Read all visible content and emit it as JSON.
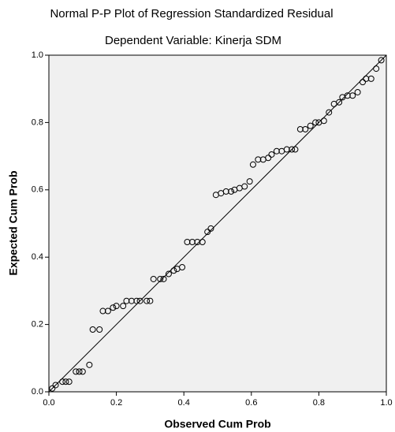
{
  "chart_data": {
    "type": "scatter",
    "title": "Normal P-P Plot of Regression Standardized Residual",
    "subtitle": "Dependent Variable: Kinerja SDM",
    "x_label": "Observed Cum Prob",
    "y_label": "Expected Cum Prob",
    "x": [
      0.01,
      0.02,
      0.04,
      0.05,
      0.06,
      0.08,
      0.09,
      0.1,
      0.12,
      0.13,
      0.15,
      0.16,
      0.175,
      0.19,
      0.2,
      0.22,
      0.23,
      0.245,
      0.26,
      0.27,
      0.29,
      0.3,
      0.31,
      0.33,
      0.34,
      0.355,
      0.37,
      0.38,
      0.395,
      0.41,
      0.425,
      0.44,
      0.455,
      0.47,
      0.48,
      0.495,
      0.51,
      0.525,
      0.54,
      0.55,
      0.565,
      0.58,
      0.595,
      0.605,
      0.62,
      0.635,
      0.65,
      0.66,
      0.675,
      0.69,
      0.705,
      0.72,
      0.73,
      0.745,
      0.76,
      0.775,
      0.79,
      0.8,
      0.815,
      0.83,
      0.845,
      0.86,
      0.87,
      0.885,
      0.9,
      0.915,
      0.93,
      0.94,
      0.955,
      0.97,
      0.985
    ],
    "values": [
      0.01,
      0.02,
      0.03,
      0.03,
      0.03,
      0.06,
      0.06,
      0.06,
      0.08,
      0.185,
      0.185,
      0.24,
      0.24,
      0.25,
      0.255,
      0.255,
      0.27,
      0.27,
      0.27,
      0.27,
      0.27,
      0.27,
      0.335,
      0.335,
      0.335,
      0.35,
      0.36,
      0.365,
      0.37,
      0.445,
      0.445,
      0.445,
      0.445,
      0.475,
      0.485,
      0.585,
      0.59,
      0.595,
      0.595,
      0.6,
      0.605,
      0.61,
      0.625,
      0.675,
      0.69,
      0.69,
      0.695,
      0.705,
      0.715,
      0.715,
      0.72,
      0.72,
      0.72,
      0.78,
      0.78,
      0.79,
      0.8,
      0.8,
      0.805,
      0.83,
      0.855,
      0.86,
      0.875,
      0.88,
      0.88,
      0.89,
      0.92,
      0.93,
      0.93,
      0.96,
      0.985
    ],
    "color": "#000000",
    "xlim": [
      0,
      1
    ],
    "ylim": [
      0,
      1
    ],
    "xticks": [
      {
        "value": 0,
        "label": "0.0"
      },
      0.2,
      0.4,
      0.6,
      0.8,
      {
        "value": 1,
        "label": "1.0"
      }
    ],
    "yticks": [
      {
        "value": 0,
        "label": "0.0"
      },
      0.2,
      0.4,
      0.6,
      0.8,
      {
        "value": 1,
        "label": "1.0"
      }
    ]
  }
}
